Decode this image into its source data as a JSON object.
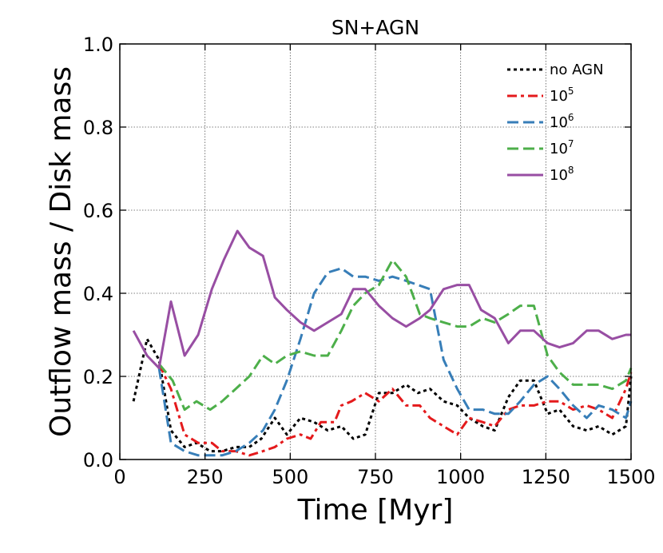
{
  "chart_data": {
    "type": "line",
    "title": "SN+AGN",
    "xlabel": "Time [Myr]",
    "ylabel": "Outflow mass / Disk mass",
    "xlim": [
      0,
      1500
    ],
    "ylim": [
      0.0,
      1.0
    ],
    "xticks": [
      0,
      250,
      500,
      750,
      1000,
      1250,
      1500
    ],
    "xtick_labels": [
      "0",
      "250",
      "500",
      "750",
      "1000",
      "1250",
      "1500"
    ],
    "yticks": [
      0.0,
      0.2,
      0.4,
      0.6,
      0.8,
      1.0
    ],
    "ytick_labels": [
      "0.0",
      "0.2",
      "0.4",
      "0.6",
      "0.8",
      "1.0"
    ],
    "grid": true,
    "legend_position": "top-right",
    "series": [
      {
        "name": "no AGN",
        "label_base": "no AGN",
        "label_exp": "",
        "color": "#000000",
        "style": "dotted",
        "x": [
          40,
          80,
          115,
          150,
          190,
          225,
          265,
          300,
          340,
          380,
          415,
          455,
          490,
          530,
          570,
          610,
          650,
          685,
          720,
          760,
          800,
          840,
          875,
          910,
          950,
          990,
          1025,
          1065,
          1100,
          1140,
          1175,
          1215,
          1255,
          1290,
          1330,
          1370,
          1405,
          1445,
          1485,
          1500
        ],
        "y": [
          0.14,
          0.29,
          0.24,
          0.07,
          0.03,
          0.04,
          0.02,
          0.02,
          0.03,
          0.03,
          0.05,
          0.1,
          0.06,
          0.1,
          0.09,
          0.07,
          0.08,
          0.05,
          0.06,
          0.16,
          0.16,
          0.18,
          0.16,
          0.17,
          0.14,
          0.13,
          0.1,
          0.08,
          0.07,
          0.15,
          0.19,
          0.19,
          0.11,
          0.12,
          0.08,
          0.07,
          0.08,
          0.06,
          0.08,
          0.2
        ]
      },
      {
        "name": "10^5",
        "label_base": "10",
        "label_exp": "5",
        "color": "#e41a1c",
        "style": "dashdot",
        "x": [
          115,
          150,
          190,
          230,
          270,
          300,
          340,
          380,
          420,
          455,
          490,
          530,
          560,
          590,
          630,
          650,
          680,
          720,
          760,
          800,
          840,
          880,
          910,
          950,
          990,
          1025,
          1065,
          1100,
          1140,
          1175,
          1215,
          1255,
          1290,
          1330,
          1370,
          1405,
          1445,
          1485,
          1500
        ],
        "y": [
          0.23,
          0.17,
          0.06,
          0.04,
          0.04,
          0.02,
          0.02,
          0.01,
          0.02,
          0.03,
          0.05,
          0.06,
          0.05,
          0.09,
          0.09,
          0.13,
          0.14,
          0.16,
          0.14,
          0.17,
          0.13,
          0.13,
          0.1,
          0.08,
          0.06,
          0.1,
          0.09,
          0.08,
          0.12,
          0.13,
          0.13,
          0.14,
          0.14,
          0.12,
          0.13,
          0.12,
          0.1,
          0.17,
          0.21
        ]
      },
      {
        "name": "10^6",
        "label_base": "10",
        "label_exp": "6",
        "color": "#377eb8",
        "style": "dashed",
        "x": [
          115,
          150,
          190,
          230,
          270,
          300,
          340,
          380,
          420,
          455,
          490,
          530,
          570,
          610,
          650,
          685,
          720,
          760,
          800,
          840,
          875,
          910,
          950,
          990,
          1025,
          1065,
          1100,
          1140,
          1175,
          1215,
          1255,
          1290,
          1330,
          1370,
          1405,
          1445,
          1485,
          1500
        ],
        "y": [
          0.22,
          0.04,
          0.02,
          0.01,
          0.01,
          0.01,
          0.02,
          0.04,
          0.07,
          0.12,
          0.19,
          0.29,
          0.4,
          0.45,
          0.46,
          0.44,
          0.44,
          0.43,
          0.44,
          0.43,
          0.42,
          0.41,
          0.24,
          0.17,
          0.12,
          0.12,
          0.11,
          0.11,
          0.14,
          0.18,
          0.2,
          0.17,
          0.13,
          0.1,
          0.13,
          0.12,
          0.1,
          0.14
        ]
      },
      {
        "name": "10^7",
        "label_base": "10",
        "label_exp": "7",
        "color": "#4daf4a",
        "style": "dashed",
        "x": [
          115,
          155,
          190,
          225,
          265,
          300,
          340,
          380,
          420,
          455,
          490,
          530,
          570,
          610,
          650,
          685,
          720,
          760,
          800,
          840,
          880,
          910,
          950,
          990,
          1025,
          1065,
          1100,
          1140,
          1175,
          1215,
          1255,
          1290,
          1330,
          1370,
          1405,
          1445,
          1485,
          1500
        ],
        "y": [
          0.23,
          0.19,
          0.12,
          0.14,
          0.12,
          0.14,
          0.17,
          0.2,
          0.25,
          0.23,
          0.25,
          0.26,
          0.25,
          0.25,
          0.31,
          0.37,
          0.4,
          0.42,
          0.48,
          0.44,
          0.35,
          0.34,
          0.33,
          0.32,
          0.32,
          0.34,
          0.33,
          0.35,
          0.37,
          0.37,
          0.25,
          0.21,
          0.18,
          0.18,
          0.18,
          0.17,
          0.19,
          0.22
        ]
      },
      {
        "name": "10^8",
        "label_base": "10",
        "label_exp": "8",
        "color": "#984ea3",
        "style": "solid",
        "x": [
          40,
          80,
          115,
          150,
          190,
          230,
          270,
          305,
          345,
          380,
          420,
          455,
          490,
          530,
          570,
          610,
          650,
          685,
          720,
          760,
          800,
          840,
          880,
          910,
          950,
          990,
          1025,
          1060,
          1100,
          1140,
          1175,
          1215,
          1255,
          1290,
          1330,
          1370,
          1405,
          1445,
          1485,
          1500
        ],
        "y": [
          0.31,
          0.25,
          0.22,
          0.38,
          0.25,
          0.3,
          0.41,
          0.48,
          0.55,
          0.51,
          0.49,
          0.39,
          0.36,
          0.33,
          0.31,
          0.33,
          0.35,
          0.41,
          0.41,
          0.37,
          0.34,
          0.32,
          0.34,
          0.36,
          0.41,
          0.42,
          0.42,
          0.36,
          0.34,
          0.28,
          0.31,
          0.31,
          0.28,
          0.27,
          0.28,
          0.31,
          0.31,
          0.29,
          0.3,
          0.3
        ]
      }
    ]
  }
}
